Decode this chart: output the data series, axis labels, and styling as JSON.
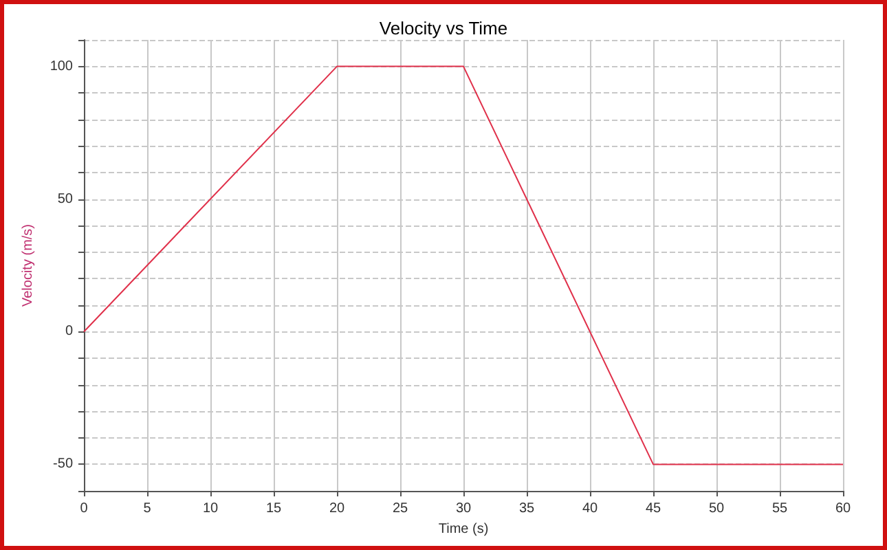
{
  "chart_data": {
    "type": "line",
    "title": "Velocity vs Time",
    "xlabel": "Time (s)",
    "ylabel": "Velocity (m/s)",
    "x": [
      0,
      20,
      30,
      45,
      60
    ],
    "series": [
      {
        "color": "#e0304a",
        "values": [
          0,
          100,
          100,
          -50,
          -50
        ]
      }
    ],
    "xlim": [
      0,
      60
    ],
    "xticks": [
      0,
      5,
      10,
      15,
      20,
      25,
      30,
      35,
      40,
      45,
      50,
      55,
      60
    ],
    "ylim": [
      -60,
      110
    ],
    "yticks": [
      {
        "value": -60,
        "label": null
      },
      -50,
      {
        "value": -40,
        "label": null
      },
      {
        "value": -30,
        "label": null
      },
      {
        "value": -20,
        "label": null
      },
      {
        "value": -10,
        "label": null
      },
      0,
      {
        "value": 10,
        "label": null
      },
      {
        "value": 20,
        "label": null
      },
      {
        "value": 30,
        "label": null
      },
      {
        "value": 40,
        "label": null
      },
      50,
      {
        "value": 60,
        "label": null
      },
      {
        "value": 70,
        "label": null
      },
      {
        "value": 80,
        "label": null
      },
      {
        "value": 90,
        "label": null
      },
      100,
      {
        "value": 110,
        "label": null
      }
    ],
    "grid": true,
    "marker": "none",
    "line_style": "solid"
  }
}
